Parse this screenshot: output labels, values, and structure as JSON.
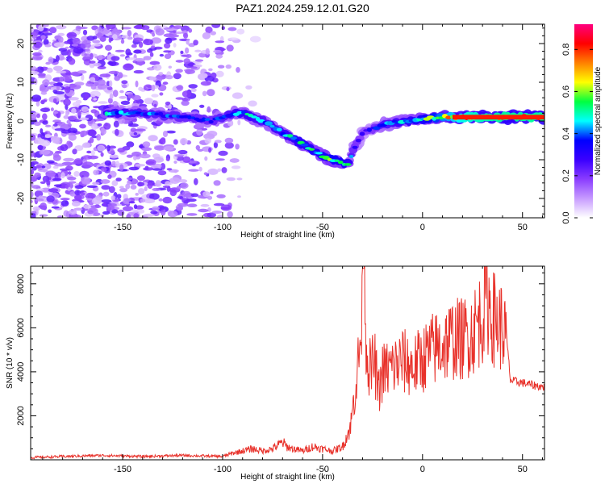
{
  "title": "PAZ1.2024.259.12.01.G20",
  "colors": {
    "snr_line": "#e8312a",
    "colormap": [
      "#ffffff",
      "#c79bff",
      "#8a3cff",
      "#3a00ff",
      "#0000ff",
      "#00ffff",
      "#00ff40",
      "#ffff00",
      "#ff8000",
      "#ff0000",
      "#ff0080"
    ]
  },
  "chart_data": [
    {
      "type": "heatmap",
      "xlabel": "Height of straight line (km)",
      "ylabel": "Frequency (Hz)",
      "xlim": [
        -196,
        61
      ],
      "ylim": [
        -25,
        25
      ],
      "x_ticks": [
        -150,
        -100,
        -50,
        0,
        50
      ],
      "x_tick_labels": [
        "-150",
        "-100",
        "-50",
        "0",
        "50"
      ],
      "y_ticks": [
        -20,
        -10,
        0,
        10,
        20
      ],
      "y_tick_labels": [
        "-20",
        "-10",
        "0",
        "10",
        "20"
      ],
      "colorbar": {
        "label": "Normalized spectral amplitude",
        "range": [
          0,
          0.92
        ],
        "ticks": [
          0.0,
          0.2,
          0.4,
          0.6,
          0.8
        ],
        "tick_labels": [
          "0.0",
          "0.2",
          "0.4",
          "0.6",
          "0.8"
        ]
      },
      "ridge": {
        "x": [
          -158,
          -140,
          -120,
          -105,
          -95,
          -90,
          -85,
          -80,
          -70,
          -60,
          -50,
          -45,
          -40,
          -37,
          -35,
          -30,
          -25,
          -20,
          -10,
          0,
          10,
          20,
          30,
          40,
          50,
          61
        ],
        "y": [
          2,
          2,
          1,
          0,
          2,
          2,
          1,
          0,
          -3,
          -6,
          -9,
          -10,
          -11,
          -11,
          -8,
          -3,
          -2,
          -1,
          0,
          0.5,
          1,
          1,
          1,
          1,
          1,
          1
        ],
        "amplitude": [
          0.5,
          0.45,
          0.4,
          0.4,
          0.45,
          0.55,
          0.5,
          0.45,
          0.5,
          0.55,
          0.6,
          0.62,
          0.6,
          0.55,
          0.4,
          0.3,
          0.35,
          0.45,
          0.5,
          0.6,
          0.75,
          0.85,
          0.9,
          0.92,
          0.92,
          0.92
        ]
      }
    },
    {
      "type": "line",
      "xlabel": "Height of straight line (km)",
      "ylabel": "SNR (10 * v/v)",
      "xlim": [
        -196,
        61
      ],
      "ylim": [
        0,
        8800
      ],
      "x_ticks": [
        -150,
        -100,
        -50,
        0,
        50
      ],
      "x_tick_labels": [
        "-150",
        "-100",
        "-50",
        "0",
        "50"
      ],
      "y_ticks": [
        2000,
        4000,
        6000,
        8000
      ],
      "y_tick_labels": [
        "2000",
        "4000",
        "6000",
        "8000"
      ],
      "series": [
        {
          "x": [
            -196,
            -180,
            -160,
            -140,
            -120,
            -100,
            -95,
            -90,
            -85,
            -80,
            -75,
            -70,
            -68,
            -65,
            -60,
            -55,
            -50,
            -45,
            -40,
            -36,
            -34,
            -32,
            -30,
            -29,
            -28,
            -26,
            -24,
            -22,
            -20,
            -15,
            -10,
            -5,
            0,
            5,
            10,
            15,
            20,
            25,
            30,
            32,
            35,
            40,
            42,
            44,
            50,
            55,
            61
          ],
          "y": [
            100,
            150,
            200,
            150,
            200,
            150,
            300,
            400,
            500,
            400,
            500,
            800,
            600,
            500,
            400,
            600,
            500,
            400,
            600,
            1500,
            3000,
            4500,
            6500,
            8800,
            5000,
            4000,
            4500,
            3000,
            4000,
            4200,
            4500,
            4200,
            4600,
            5000,
            5200,
            5500,
            5500,
            5800,
            6600,
            7500,
            6500,
            6000,
            5600,
            3600,
            3500,
            3400,
            3300
          ]
        }
      ]
    }
  ]
}
